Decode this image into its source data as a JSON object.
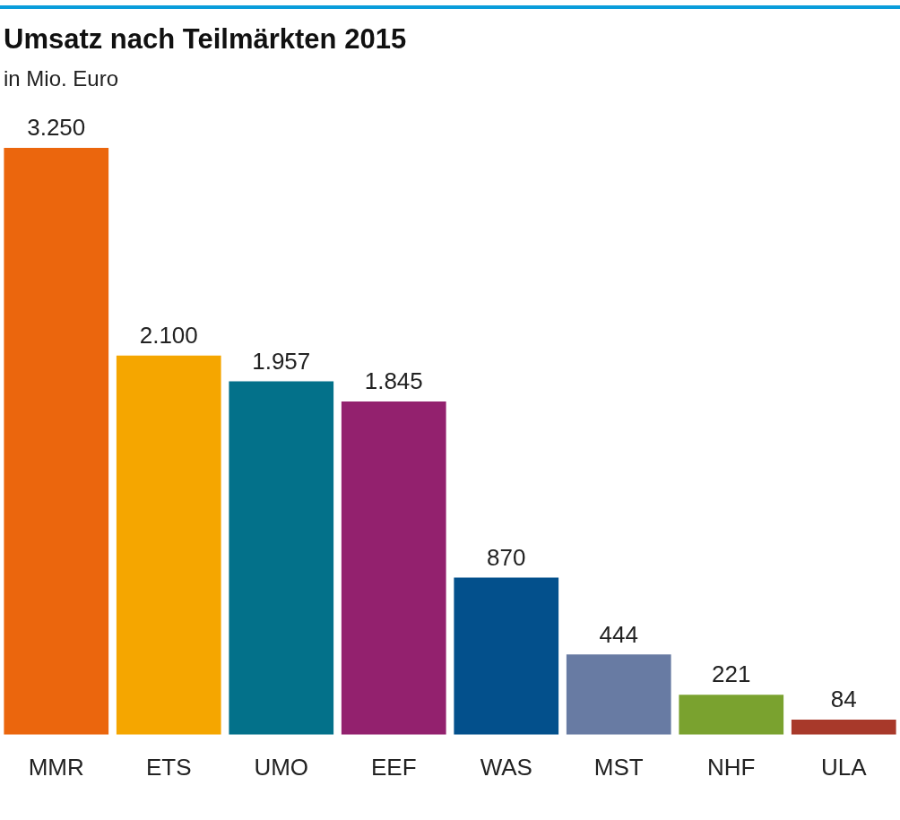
{
  "chart_data": {
    "type": "bar",
    "title": "Umsatz nach Teilmärkten 2015",
    "subtitle": "in Mio. Euro",
    "categories": [
      "MMR",
      "ETS",
      "UMO",
      "EEF",
      "WAS",
      "MST",
      "NHF",
      "ULA"
    ],
    "values": [
      3250,
      2100,
      1957,
      1845,
      870,
      444,
      221,
      84
    ],
    "colors": [
      "#eb660d",
      "#f5a600",
      "#03718a",
      "#93216e",
      "#03508c",
      "#687ba3",
      "#7aa22f",
      "#a8392a"
    ],
    "value_labels": [
      "3.250",
      "2.100",
      "1.957",
      "1.845",
      "870",
      "444",
      "221",
      "84"
    ],
    "grid": false,
    "legend": false
  }
}
